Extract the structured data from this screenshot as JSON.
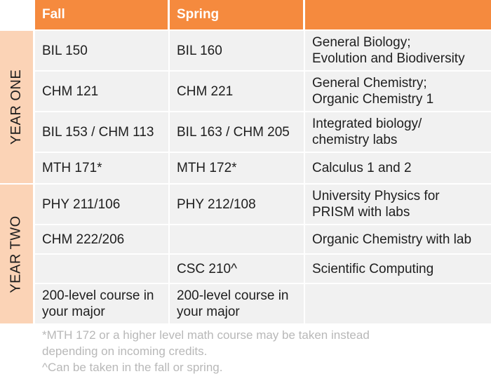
{
  "header": {
    "fall": "Fall",
    "spring": "Spring",
    "description": ""
  },
  "year_one_label": "YEAR ONE",
  "year_two_label": "YEAR TWO",
  "rows": [
    {
      "fall": "BIL 150",
      "spring": "BIL 160",
      "description": "General Biology;\nEvolution and Biodiversity"
    },
    {
      "fall": "CHM 121",
      "spring": "CHM 221",
      "description": "General Chemistry;\nOrganic Chemistry 1"
    },
    {
      "fall": "BIL 153 / CHM 113",
      "spring": "BIL 163 / CHM 205",
      "description": "Integrated biology/\nchemistry labs"
    },
    {
      "fall": "MTH 171*",
      "spring": "MTH 172*",
      "description": "Calculus 1 and 2"
    },
    {
      "fall": "PHY 211/106",
      "spring": "PHY 212/108",
      "description": "University Physics for\nPRISM with labs"
    },
    {
      "fall": "CHM 222/206",
      "spring": "",
      "description": "Organic Chemistry with lab"
    },
    {
      "fall": "",
      "spring": "CSC 210^",
      "description": "Scientific Computing"
    },
    {
      "fall": "200-level course in\nyour major",
      "spring": "200-level course in\nyour major",
      "description": ""
    }
  ],
  "footnotes": [
    "*MTH 172 or a higher level math course may be taken instead\ndepending on incoming credits.",
    "^Can be taken in the fall or spring."
  ]
}
